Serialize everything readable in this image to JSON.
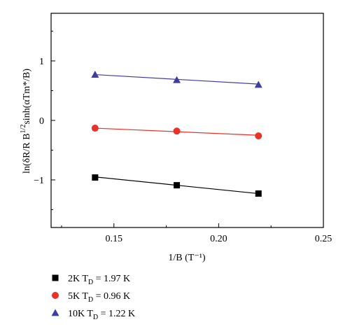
{
  "chart_data": {
    "type": "scatter",
    "title": "",
    "xlabel": "1/B (T⁻¹)",
    "ylabel_parts": {
      "main": "ln(δR/R B",
      "sup": "1/2",
      "rest": "sinh(αTm*/B)"
    },
    "xlim": [
      0.12,
      0.25
    ],
    "ylim": [
      -1.8,
      1.8
    ],
    "xticks": [
      0.15,
      0.2,
      0.25
    ],
    "xtick_labels": [
      "0.15",
      "0.20",
      "0.25"
    ],
    "yticks": [
      -1,
      0,
      1
    ],
    "ytick_labels": [
      "−1",
      "0",
      "1"
    ],
    "grid": false,
    "legend_position": "bottom-left-below",
    "series": [
      {
        "marker": "square",
        "color": "#000000",
        "legend_main": "2K  T",
        "legend_sub": "D",
        "legend_rest": " = 1.97 K",
        "x": [
          0.141,
          0.18,
          0.219
        ],
        "y": [
          -0.96,
          -1.09,
          -1.23
        ],
        "fit": [
          [
            0.141,
            -0.95
          ],
          [
            0.219,
            -1.23
          ]
        ]
      },
      {
        "marker": "circle",
        "color": "#e8322a",
        "legend_main": "5K  T",
        "legend_sub": "D",
        "legend_rest": " = 0.96 K",
        "x": [
          0.141,
          0.18,
          0.219
        ],
        "y": [
          -0.13,
          -0.18,
          -0.26
        ],
        "fit": [
          [
            0.141,
            -0.13
          ],
          [
            0.219,
            -0.25
          ]
        ]
      },
      {
        "marker": "triangle",
        "color": "#3f3ea0",
        "legend_main": "10K  T",
        "legend_sub": "D",
        "legend_rest": " = 1.22 K",
        "x": [
          0.141,
          0.18,
          0.219
        ],
        "y": [
          0.77,
          0.68,
          0.6
        ],
        "fit": [
          [
            0.141,
            0.77
          ],
          [
            0.219,
            0.61
          ]
        ]
      }
    ]
  }
}
